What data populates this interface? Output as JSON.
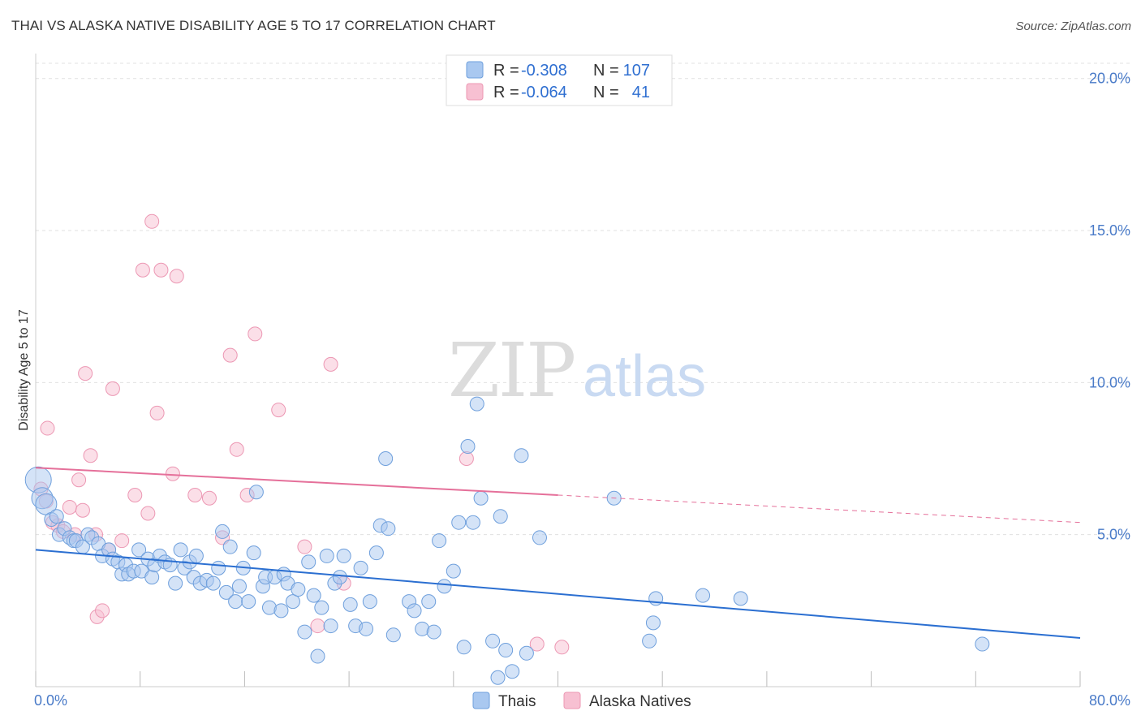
{
  "title": "THAI VS ALASKA NATIVE DISABILITY AGE 5 TO 17 CORRELATION CHART",
  "source": "Source: ZipAtlas.com",
  "watermark": {
    "zip": "ZIP",
    "atlas": "atlas"
  },
  "legend": {
    "r_label": "R =",
    "n_label": "N =",
    "rows": [
      {
        "r": "-0.308",
        "n": "107"
      },
      {
        "r": "-0.064",
        "n": "41"
      }
    ]
  },
  "bottom_legend": [
    "Thais",
    "Alaska Natives"
  ],
  "colors": {
    "thais_fill": "#a9c8f0",
    "thais_stroke": "#6e9fdc",
    "thais_line": "#2b6fd1",
    "alaska_fill": "#f7c0d2",
    "alaska_stroke": "#ec97b3",
    "alaska_line": "#e5709a",
    "tick_text": "#4a7bc8",
    "grid": "#e0e0e0"
  },
  "chart_data": {
    "type": "scatter",
    "title": "THAI VS ALASKA NATIVE DISABILITY AGE 5 TO 17 CORRELATION CHART",
    "xlabel": "",
    "ylabel": "Disability Age 5 to 17",
    "xlim": [
      0,
      80
    ],
    "ylim": [
      0,
      20.5
    ],
    "x_tick_labels": [
      "0.0%",
      "80.0%"
    ],
    "y_ticks": [
      5,
      10,
      15,
      20
    ],
    "y_tick_labels": [
      "5.0%",
      "10.0%",
      "15.0%",
      "20.0%"
    ],
    "grid": true,
    "series": [
      {
        "name": "Thais",
        "r": -0.308,
        "n": 107,
        "trend": {
          "x0": 0,
          "y0": 4.5,
          "x1": 80,
          "y1": 1.6
        },
        "points": [
          [
            0.2,
            6.8
          ],
          [
            0.5,
            6.2
          ],
          [
            0.8,
            6.0
          ],
          [
            1.2,
            5.5
          ],
          [
            1.6,
            5.6
          ],
          [
            1.8,
            5.0
          ],
          [
            2.2,
            5.2
          ],
          [
            2.6,
            4.9
          ],
          [
            2.9,
            4.8
          ],
          [
            3.1,
            4.8
          ],
          [
            3.6,
            4.6
          ],
          [
            4.0,
            5.0
          ],
          [
            4.3,
            4.9
          ],
          [
            4.8,
            4.7
          ],
          [
            5.1,
            4.3
          ],
          [
            5.6,
            4.5
          ],
          [
            5.9,
            4.2
          ],
          [
            6.3,
            4.1
          ],
          [
            6.6,
            3.7
          ],
          [
            6.9,
            4.0
          ],
          [
            7.1,
            3.7
          ],
          [
            7.5,
            3.8
          ],
          [
            7.9,
            4.5
          ],
          [
            8.1,
            3.8
          ],
          [
            8.6,
            4.2
          ],
          [
            8.9,
            3.6
          ],
          [
            9.1,
            4.0
          ],
          [
            9.5,
            4.3
          ],
          [
            9.9,
            4.1
          ],
          [
            10.3,
            4.0
          ],
          [
            10.7,
            3.4
          ],
          [
            11.1,
            4.5
          ],
          [
            11.4,
            3.9
          ],
          [
            11.8,
            4.1
          ],
          [
            12.1,
            3.6
          ],
          [
            12.3,
            4.3
          ],
          [
            12.6,
            3.4
          ],
          [
            13.1,
            3.5
          ],
          [
            13.6,
            3.4
          ],
          [
            14.0,
            3.9
          ],
          [
            14.3,
            5.1
          ],
          [
            14.6,
            3.1
          ],
          [
            14.9,
            4.6
          ],
          [
            15.3,
            2.8
          ],
          [
            15.6,
            3.3
          ],
          [
            15.9,
            3.9
          ],
          [
            16.3,
            2.8
          ],
          [
            16.7,
            4.4
          ],
          [
            16.9,
            6.4
          ],
          [
            17.4,
            3.3
          ],
          [
            17.6,
            3.6
          ],
          [
            17.9,
            2.6
          ],
          [
            18.3,
            3.6
          ],
          [
            18.8,
            2.5
          ],
          [
            19.0,
            3.7
          ],
          [
            19.3,
            3.4
          ],
          [
            19.7,
            2.8
          ],
          [
            20.1,
            3.2
          ],
          [
            20.6,
            1.8
          ],
          [
            20.9,
            4.1
          ],
          [
            21.3,
            3.0
          ],
          [
            21.6,
            1.0
          ],
          [
            21.9,
            2.6
          ],
          [
            22.3,
            4.3
          ],
          [
            22.6,
            2.0
          ],
          [
            22.9,
            3.4
          ],
          [
            23.3,
            3.6
          ],
          [
            23.6,
            4.3
          ],
          [
            24.1,
            2.7
          ],
          [
            24.5,
            2.0
          ],
          [
            24.9,
            3.9
          ],
          [
            25.3,
            1.9
          ],
          [
            25.6,
            2.8
          ],
          [
            26.1,
            4.4
          ],
          [
            26.4,
            5.3
          ],
          [
            26.8,
            7.5
          ],
          [
            27.0,
            5.2
          ],
          [
            27.4,
            1.7
          ],
          [
            28.6,
            2.8
          ],
          [
            29.0,
            2.5
          ],
          [
            29.6,
            1.9
          ],
          [
            30.1,
            2.8
          ],
          [
            30.5,
            1.8
          ],
          [
            30.9,
            4.8
          ],
          [
            31.3,
            3.3
          ],
          [
            32.0,
            3.8
          ],
          [
            32.4,
            5.4
          ],
          [
            32.8,
            1.3
          ],
          [
            33.1,
            7.9
          ],
          [
            33.5,
            5.4
          ],
          [
            33.8,
            9.3
          ],
          [
            34.1,
            6.2
          ],
          [
            35.0,
            1.5
          ],
          [
            35.4,
            0.3
          ],
          [
            35.6,
            5.6
          ],
          [
            36.0,
            1.2
          ],
          [
            36.5,
            0.5
          ],
          [
            37.2,
            7.6
          ],
          [
            37.6,
            1.1
          ],
          [
            38.6,
            4.9
          ],
          [
            44.3,
            6.2
          ],
          [
            47.0,
            1.5
          ],
          [
            47.3,
            2.1
          ],
          [
            47.5,
            2.9
          ],
          [
            51.1,
            3.0
          ],
          [
            54.0,
            2.9
          ],
          [
            72.5,
            1.4
          ]
        ]
      },
      {
        "name": "Alaska Natives",
        "r": -0.064,
        "n": 41,
        "trend": {
          "x0": 0,
          "y0": 7.2,
          "x1": 80,
          "y1": 5.4,
          "solid_until": 40
        },
        "points": [
          [
            0.4,
            6.5
          ],
          [
            0.8,
            6.1
          ],
          [
            0.9,
            8.5
          ],
          [
            1.3,
            5.4
          ],
          [
            1.7,
            5.3
          ],
          [
            2.1,
            5.1
          ],
          [
            2.6,
            5.9
          ],
          [
            3.0,
            5.0
          ],
          [
            3.3,
            6.8
          ],
          [
            3.6,
            5.8
          ],
          [
            3.8,
            10.3
          ],
          [
            4.2,
            7.6
          ],
          [
            4.6,
            5.0
          ],
          [
            4.7,
            2.3
          ],
          [
            5.1,
            2.5
          ],
          [
            5.6,
            4.5
          ],
          [
            5.9,
            9.8
          ],
          [
            6.6,
            4.8
          ],
          [
            7.6,
            6.3
          ],
          [
            8.2,
            13.7
          ],
          [
            8.6,
            5.7
          ],
          [
            8.9,
            15.3
          ],
          [
            9.3,
            9.0
          ],
          [
            9.6,
            13.7
          ],
          [
            10.5,
            7.0
          ],
          [
            10.8,
            13.5
          ],
          [
            12.2,
            6.3
          ],
          [
            13.3,
            6.2
          ],
          [
            14.3,
            4.9
          ],
          [
            14.9,
            10.9
          ],
          [
            15.4,
            7.8
          ],
          [
            16.2,
            6.3
          ],
          [
            16.8,
            11.6
          ],
          [
            18.6,
            9.1
          ],
          [
            20.6,
            4.6
          ],
          [
            21.6,
            2.0
          ],
          [
            22.6,
            10.6
          ],
          [
            23.6,
            3.4
          ],
          [
            33.0,
            7.5
          ],
          [
            38.4,
            1.4
          ],
          [
            40.3,
            1.3
          ]
        ]
      }
    ]
  }
}
